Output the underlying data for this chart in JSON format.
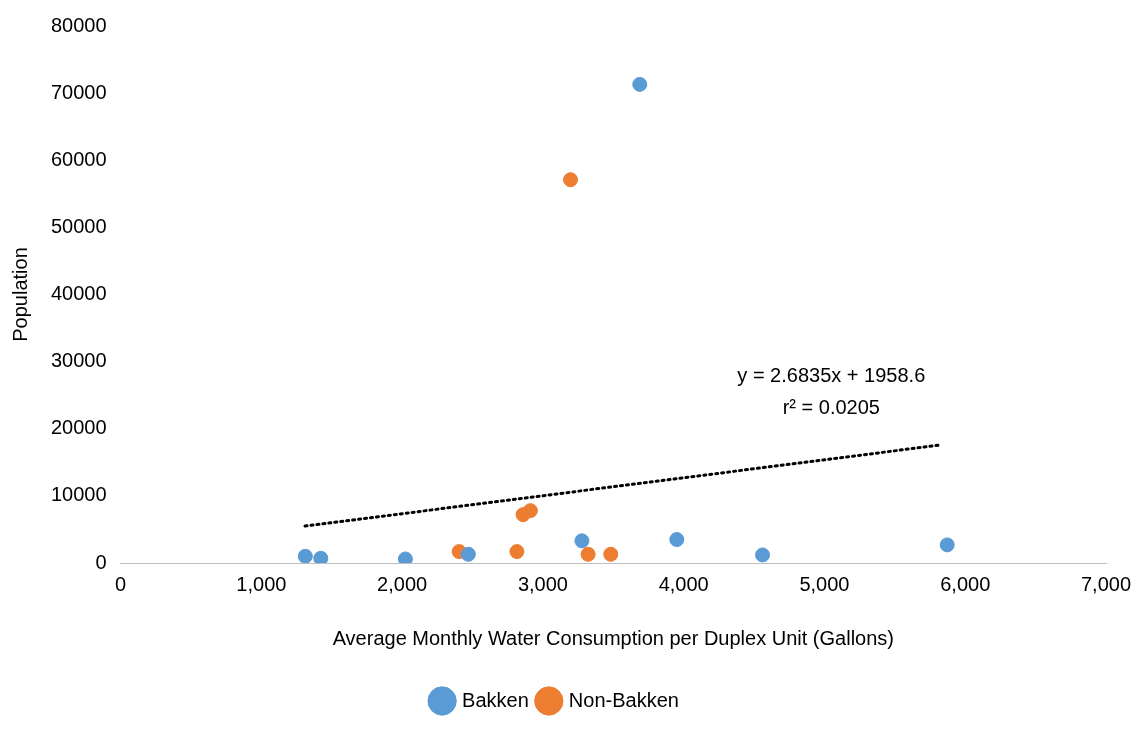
{
  "chart_data": {
    "type": "scatter",
    "xlabel": "Average Monthly Water Consumption per Duplex Unit (Gallons)",
    "ylabel": "Population",
    "xlim": [
      0,
      7000
    ],
    "xticks": [
      0,
      {
        "value": 1000,
        "label": "1,000"
      },
      {
        "value": 2000,
        "label": "2,000"
      },
      {
        "value": 3000,
        "label": "3,000"
      },
      {
        "value": 4000,
        "label": "4,000"
      },
      {
        "value": 5000,
        "label": "5,000"
      },
      {
        "value": 6000,
        "label": "6,000"
      },
      {
        "value": 7000,
        "label": "7,000"
      }
    ],
    "ylim": [
      0,
      80000
    ],
    "yticks": [
      0,
      10000,
      20000,
      30000,
      40000,
      50000,
      60000,
      70000,
      80000
    ],
    "grid": false,
    "legend": "bottom",
    "marker": "circle",
    "series": [
      {
        "name": "Bakken",
        "color": "#5b9bd5",
        "x": [
          1312,
          1422,
          2023,
          2470,
          3277,
          3688,
          3951,
          4560,
          5872
        ],
        "values": [
          1000,
          700,
          600,
          1300,
          3300,
          71300,
          3500,
          1200,
          2700
        ]
      },
      {
        "name": "Non-Bakken",
        "color": "#ed7d31",
        "x": [
          2405,
          2815,
          2859,
          2911,
          3196,
          3321,
          3482
        ],
        "values": [
          1700,
          1700,
          7200,
          7800,
          57100,
          1300,
          1300
        ]
      },
      {
        "type": "line",
        "color": "#000000",
        "line_style": "dotted",
        "marker": "none",
        "x": [
          1310,
          5830
        ],
        "values": [
          5500,
          17600
        ]
      }
    ],
    "annotations": [
      "y = 2.6835x + 1958.6",
      "r² = 0.0205"
    ]
  }
}
